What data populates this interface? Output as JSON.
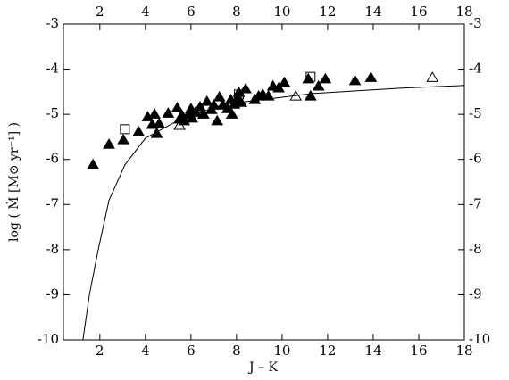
{
  "chart_data": {
    "type": "scatter",
    "x_label": "J – K",
    "y_label": "log ( Ṁ  [M⊙ yr⁻¹] )",
    "xlim": [
      0.4,
      18
    ],
    "ylim": [
      -10,
      -3
    ],
    "xticks": [
      2,
      4,
      6,
      8,
      10,
      12,
      14,
      16,
      18
    ],
    "yticks": [
      -10,
      -9,
      -8,
      -7,
      -6,
      -5,
      -4,
      -3
    ],
    "mirror_axes": true,
    "series": [
      {
        "style": "line",
        "color": "#000000",
        "x": [
          1.26,
          1.54,
          1.93,
          2.4,
          3.1,
          4.0,
          5.46,
          7.42,
          9.4,
          11.34,
          13.3,
          15.26,
          18
        ],
        "values": [
          -10,
          -9.0,
          -8.0,
          -6.91,
          -6.12,
          -5.53,
          -5.13,
          -4.78,
          -4.66,
          -4.54,
          -4.48,
          -4.42,
          -4.36
        ]
      },
      {
        "style": "marker",
        "marker": "triangle",
        "filled": true,
        "color": "#000000",
        "x": [
          1.7,
          2.4,
          3.03,
          3.7,
          4.1,
          4.3,
          4.4,
          4.5,
          4.6,
          5.0,
          5.4,
          5.5,
          5.6,
          5.7,
          5.9,
          6.0,
          6.05,
          6.2,
          6.4,
          6.55,
          6.7,
          6.9,
          7.0,
          7.15,
          7.25,
          7.4,
          7.6,
          7.75,
          7.8,
          7.9,
          8.05,
          8.1,
          8.2,
          8.4,
          8.8,
          8.97,
          9.15,
          9.4,
          9.6,
          9.85,
          10.1,
          11.15,
          11.25,
          11.6,
          11.9,
          13.2,
          13.9
        ],
        "values": [
          -6.12,
          -5.67,
          -5.57,
          -5.39,
          -5.06,
          -5.23,
          -5.0,
          -5.43,
          -5.21,
          -4.98,
          -4.86,
          -5.11,
          -5.02,
          -5.15,
          -5.0,
          -4.88,
          -5.09,
          -4.96,
          -4.84,
          -5.0,
          -4.72,
          -4.9,
          -4.8,
          -5.15,
          -4.62,
          -4.8,
          -4.88,
          -4.68,
          -5.0,
          -4.78,
          -4.66,
          -4.52,
          -4.74,
          -4.44,
          -4.68,
          -4.6,
          -4.56,
          -4.6,
          -4.38,
          -4.42,
          -4.3,
          -4.22,
          -4.6,
          -4.38,
          -4.22,
          -4.26,
          -4.19
        ]
      },
      {
        "style": "marker",
        "marker": "square",
        "filled": false,
        "color": "#000000",
        "x": [
          3.1,
          8.1,
          11.25
        ],
        "values": [
          -5.33,
          -4.56,
          -4.17
        ]
      },
      {
        "style": "marker",
        "marker": "triangle",
        "filled": false,
        "color": "#000000",
        "x": [
          5.5,
          10.6,
          16.6
        ],
        "values": [
          -5.25,
          -4.6,
          -4.19
        ]
      }
    ]
  }
}
